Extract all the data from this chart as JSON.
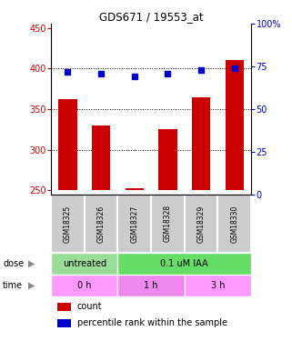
{
  "title": "GDS671 / 19553_at",
  "samples": [
    "GSM18325",
    "GSM18326",
    "GSM18327",
    "GSM18328",
    "GSM18329",
    "GSM18330"
  ],
  "bar_values": [
    362,
    330,
    253,
    325,
    365,
    410
  ],
  "scatter_values": [
    72,
    71,
    69,
    71,
    73,
    74
  ],
  "bar_color": "#cc0000",
  "scatter_color": "#0000cc",
  "ylim_left": [
    245,
    455
  ],
  "ylim_right": [
    0,
    100
  ],
  "yticks_left": [
    250,
    300,
    350,
    400,
    450
  ],
  "yticks_right": [
    0,
    25,
    50,
    75,
    100
  ],
  "dose_labels": [
    {
      "text": "untreated",
      "start": 0,
      "end": 2,
      "color": "#99dd99"
    },
    {
      "text": "0.1 uM IAA",
      "start": 2,
      "end": 6,
      "color": "#66dd66"
    }
  ],
  "time_labels": [
    {
      "text": "0 h",
      "start": 0,
      "end": 2,
      "color": "#ff99ff"
    },
    {
      "text": "1 h",
      "start": 2,
      "end": 4,
      "color": "#ee88ee"
    },
    {
      "text": "3 h",
      "start": 4,
      "end": 6,
      "color": "#ff99ff"
    }
  ],
  "dose_arrow_label": "dose",
  "time_arrow_label": "time",
  "legend_count_color": "#cc0000",
  "legend_pct_color": "#0000cc",
  "legend_count_label": "count",
  "legend_pct_label": "percentile rank within the sample",
  "bar_base": 250,
  "sample_area_color": "#cccccc",
  "ytick_left_color": "#cc0000",
  "ytick_right_color": "#0000cc"
}
